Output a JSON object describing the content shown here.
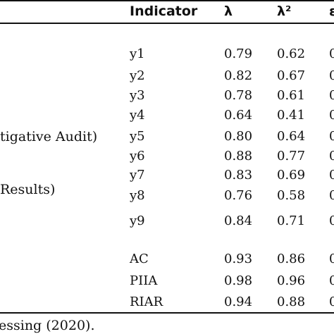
{
  "table": {
    "headers": {
      "indicator": "Indicator",
      "lambda": "λ",
      "lambda_sq": "λ²",
      "epsilon": "ε"
    },
    "group_labels": {
      "investigative_audit": "tigative Audit)",
      "results": "Results)"
    },
    "rows": [
      {
        "indicator": "y1",
        "lambda": "0.79",
        "lambda_sq": "0.62",
        "epsilon": "0"
      },
      {
        "indicator": "y2",
        "lambda": "0.82",
        "lambda_sq": "0.67",
        "epsilon": "0"
      },
      {
        "indicator": "y3",
        "lambda": "0.78",
        "lambda_sq": "0.61",
        "epsilon": "0"
      },
      {
        "indicator": "y4",
        "lambda": "0.64",
        "lambda_sq": "0.41",
        "epsilon": "0"
      },
      {
        "indicator": "y5",
        "lambda": "0.80",
        "lambda_sq": "0.64",
        "epsilon": "0"
      },
      {
        "indicator": "y6",
        "lambda": "0.88",
        "lambda_sq": "0.77",
        "epsilon": "0"
      },
      {
        "indicator": "y7",
        "lambda": "0.83",
        "lambda_sq": "0.69",
        "epsilon": "0"
      },
      {
        "indicator": "y8",
        "lambda": "0.76",
        "lambda_sq": "0.58",
        "epsilon": "0"
      },
      {
        "indicator": "y9",
        "lambda": "0.84",
        "lambda_sq": "0.71",
        "epsilon": "0"
      },
      {
        "indicator": "AC",
        "lambda": "0.93",
        "lambda_sq": "0.86",
        "epsilon": "0"
      },
      {
        "indicator": "PIIA",
        "lambda": "0.98",
        "lambda_sq": "0.96",
        "epsilon": "0"
      },
      {
        "indicator": "RIAR",
        "lambda": "0.94",
        "lambda_sq": "0.88",
        "epsilon": "0"
      }
    ]
  },
  "caption": "essing (2020)."
}
